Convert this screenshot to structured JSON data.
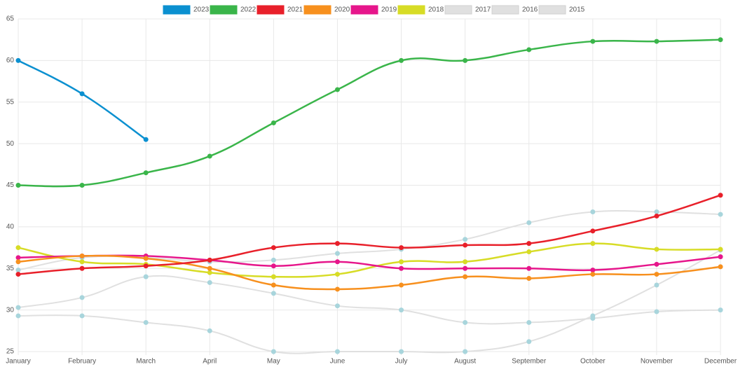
{
  "chart_data": {
    "type": "line",
    "categories": [
      "January",
      "February",
      "March",
      "April",
      "May",
      "June",
      "July",
      "August",
      "September",
      "October",
      "November",
      "December"
    ],
    "ylim": [
      25,
      65
    ],
    "yticks": [
      25,
      30,
      35,
      40,
      45,
      50,
      55,
      60,
      65
    ],
    "grid": true,
    "legend": "top",
    "series": [
      {
        "name": "2023",
        "color": "#0b90d0",
        "values": [
          60,
          56,
          50.5,
          null,
          null,
          null,
          null,
          null,
          null,
          null,
          null,
          null
        ]
      },
      {
        "name": "2022",
        "color": "#3ab54a",
        "values": [
          45,
          45,
          46.5,
          48.5,
          52.5,
          56.5,
          60,
          60,
          61.3,
          62.3,
          62.3,
          62.5
        ]
      },
      {
        "name": "2021",
        "color": "#e8202a",
        "values": [
          34.3,
          35,
          35.3,
          36,
          37.5,
          38,
          37.5,
          37.8,
          38,
          39.5,
          41.3,
          43.8
        ]
      },
      {
        "name": "2020",
        "color": "#f7901e",
        "values": [
          35.8,
          36.5,
          36.2,
          35,
          33,
          32.5,
          33,
          34,
          33.8,
          34.3,
          34.3,
          35.2
        ]
      },
      {
        "name": "2019",
        "color": "#e6168b",
        "values": [
          36.3,
          36.5,
          36.5,
          36,
          35.3,
          35.8,
          35,
          35,
          35,
          34.8,
          35.5,
          36.4
        ]
      },
      {
        "name": "2018",
        "color": "#d7dc26",
        "values": [
          37.5,
          35.8,
          35.5,
          34.5,
          34,
          34.3,
          35.8,
          35.8,
          37,
          38,
          37.3,
          37.3
        ]
      },
      {
        "name": "2017",
        "color": "#e0e0e0",
        "values": [
          34.8,
          36.3,
          36.3,
          35.8,
          36,
          36.8,
          37.3,
          38.5,
          40.5,
          41.8,
          41.8,
          41.5
        ]
      },
      {
        "name": "2016",
        "color": "#e0e0e0",
        "values": [
          30.3,
          31.5,
          34,
          33.3,
          32,
          30.5,
          30,
          28.5,
          28.5,
          29,
          29.8,
          30
        ]
      },
      {
        "name": "2015",
        "color": "#e0e0e0",
        "values": [
          29.3,
          29.3,
          28.5,
          27.5,
          25,
          25,
          25,
          25,
          26.2,
          29.3,
          33,
          37.2
        ]
      }
    ]
  }
}
